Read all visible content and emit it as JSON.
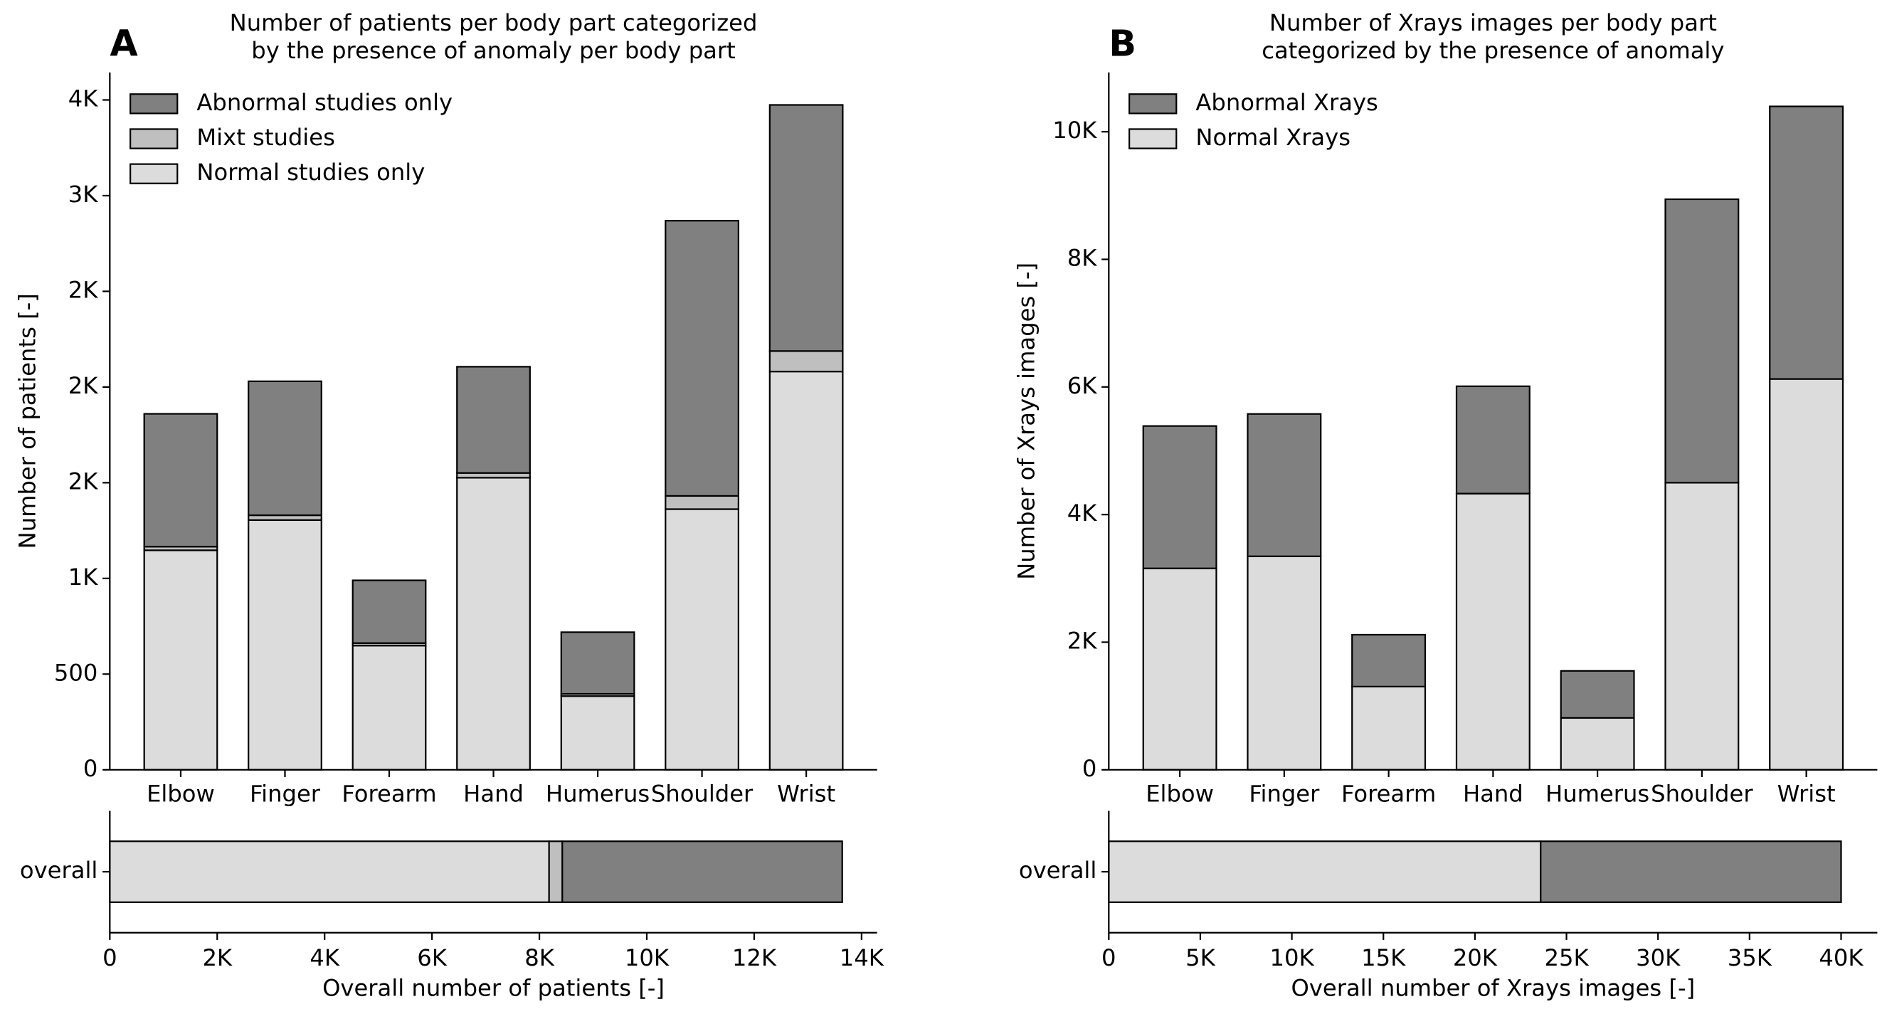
{
  "chart_data": [
    {
      "type": "bar",
      "stacked": true,
      "panel_label": "A",
      "title": [
        "Number of patients per body part categorized",
        " by the presence of anomaly per body part"
      ],
      "ylabel": "Number of patients [-]",
      "categories": [
        "Elbow",
        "Finger",
        "Forearm",
        "Hand",
        "Humerus",
        "Shoulder",
        "Wrist"
      ],
      "series": [
        {
          "name": "Normal studies only",
          "color": "#dcdcdc",
          "values": [
            1147,
            1305,
            649,
            1526,
            385,
            1362,
            2081
          ]
        },
        {
          "name": "Mixt studies",
          "color": "#bfbfbf",
          "values": [
            19,
            25,
            13,
            25,
            12,
            69,
            107
          ]
        },
        {
          "name": "Abnormal studies only",
          "color": "#808080",
          "values": [
            694,
            700,
            328,
            555,
            322,
            1438,
            1286
          ]
        }
      ],
      "ylim": [
        0,
        3644
      ],
      "yticks": [
        0,
        500,
        {
          "value": 1000,
          "label": "1K"
        },
        {
          "value": 1500,
          "label": "2K"
        },
        {
          "value": 2000,
          "label": "2K"
        },
        {
          "value": 2500,
          "label": "2K"
        },
        {
          "value": 3000,
          "label": "3K"
        },
        {
          "value": 3500,
          "label": "4K"
        }
      ],
      "legend": "upper left"
    },
    {
      "type": "barh",
      "stacked": true,
      "xlabel": "Overall number of patients [-]",
      "categories": [
        "overall"
      ],
      "series": [
        {
          "color": "#dcdcdc",
          "values": [
            8180
          ]
        },
        {
          "color": "#bfbfbf",
          "values": [
            247
          ]
        },
        {
          "color": "#808080",
          "values": [
            5213
          ]
        }
      ],
      "xlim": [
        0,
        14290
      ],
      "xticks": [
        0,
        {
          "value": 2000,
          "label": "2K"
        },
        {
          "value": 4000,
          "label": "4K"
        },
        {
          "value": 6000,
          "label": "6K"
        },
        {
          "value": 8000,
          "label": "8K"
        },
        {
          "value": 10000,
          "label": "10K"
        },
        {
          "value": 12000,
          "label": "12K"
        },
        {
          "value": 14000,
          "label": "14K"
        }
      ]
    },
    {
      "type": "bar",
      "stacked": true,
      "panel_label": "B",
      "title": [
        "Number of Xrays images per body part",
        "categorized by the presence of anomaly"
      ],
      "ylabel": "Number of Xrays images [-]",
      "categories": [
        "Elbow",
        "Finger",
        "Forearm",
        "Hand",
        "Humerus",
        "Shoulder",
        "Wrist"
      ],
      "series": [
        {
          "name": "Normal Xrays",
          "color": "#dcdcdc",
          "values": [
            3157,
            3346,
            1304,
            4329,
            813,
            4499,
            6125
          ]
        },
        {
          "name": "Abnormal Xrays",
          "color": "#808080",
          "values": [
            2231,
            2231,
            813,
            1682,
            737,
            4443,
            4272
          ]
        }
      ],
      "ylim": [
        0,
        10930
      ],
      "yticks": [
        0,
        {
          "value": 2000,
          "label": "2K"
        },
        {
          "value": 4000,
          "label": "4K"
        },
        {
          "value": 6000,
          "label": "6K"
        },
        {
          "value": 8000,
          "label": "8K"
        },
        {
          "value": 10000,
          "label": "10K"
        }
      ],
      "legend": "upper left"
    },
    {
      "type": "barh",
      "stacked": true,
      "xlabel": "Overall number of Xrays images [-]",
      "categories": [
        "overall"
      ],
      "series": [
        {
          "color": "#dcdcdc",
          "values": [
            23590
          ]
        },
        {
          "color": "#808080",
          "values": [
            16410
          ]
        }
      ],
      "xlim": [
        0,
        41980
      ],
      "xticks": [
        0,
        {
          "value": 5000,
          "label": "5K"
        },
        {
          "value": 10000,
          "label": "10K"
        },
        {
          "value": 15000,
          "label": "15K"
        },
        {
          "value": 20000,
          "label": "20K"
        },
        {
          "value": 25000,
          "label": "25K"
        },
        {
          "value": 30000,
          "label": "30K"
        },
        {
          "value": 35000,
          "label": "35K"
        },
        {
          "value": 40000,
          "label": "40K"
        }
      ]
    }
  ]
}
